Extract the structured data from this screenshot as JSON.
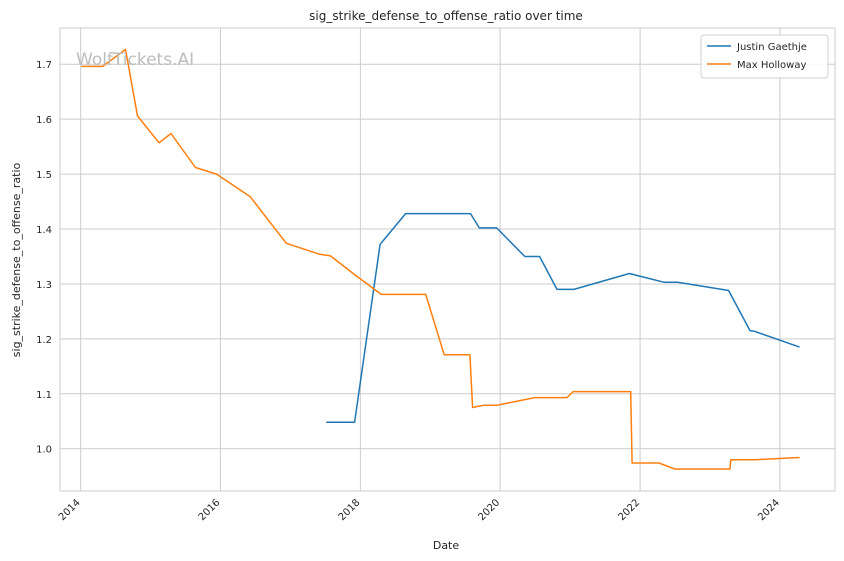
{
  "chart_data": {
    "type": "line",
    "title": "sig_strike_defense_to_offense_ratio over time",
    "xlabel": "Date",
    "ylabel": "sig_strike_defense_to_offense_ratio",
    "watermark": "WolfTickets.AI",
    "xlim": [
      "2013-09-15",
      "2024-10-15"
    ],
    "ylim": [
      0.923,
      1.766
    ],
    "x_ticks": [
      "2014",
      "2016",
      "2018",
      "2020",
      "2022",
      "2024"
    ],
    "y_ticks": [
      "1.0",
      "1.1",
      "1.2",
      "1.3",
      "1.4",
      "1.5",
      "1.6",
      "1.7"
    ],
    "grid": true,
    "legend_position": "top-right",
    "series": [
      {
        "name": "Justin Gaethje",
        "color": "#1f77b4",
        "points": [
          [
            "2017-07-07",
            1.048
          ],
          [
            "2017-12-02",
            1.048
          ],
          [
            "2018-04-14",
            1.372
          ],
          [
            "2018-08-25",
            1.428
          ],
          [
            "2019-03-30",
            1.428
          ],
          [
            "2019-07-30",
            1.428
          ],
          [
            "2019-09-14",
            1.402
          ],
          [
            "2019-12-14",
            1.402
          ],
          [
            "2020-05-09",
            1.35
          ],
          [
            "2020-07-25",
            1.35
          ],
          [
            "2020-10-24",
            1.29
          ],
          [
            "2021-01-20",
            1.29
          ],
          [
            "2021-11-06",
            1.319
          ],
          [
            "2022-05-07",
            1.303
          ],
          [
            "2022-07-16",
            1.303
          ],
          [
            "2023-03-04",
            1.29
          ],
          [
            "2023-04-08",
            1.288
          ],
          [
            "2023-07-29",
            1.215
          ],
          [
            "2023-08-20",
            1.214
          ],
          [
            "2024-04-13",
            1.185
          ]
        ]
      },
      {
        "name": "Max Holloway",
        "color": "#ff7f0e",
        "points": [
          [
            "2014-01-04",
            1.696
          ],
          [
            "2014-04-26",
            1.696
          ],
          [
            "2014-08-23",
            1.727
          ],
          [
            "2014-10-25",
            1.606
          ],
          [
            "2015-02-14",
            1.557
          ],
          [
            "2015-04-18",
            1.574
          ],
          [
            "2015-08-23",
            1.512
          ],
          [
            "2015-12-12",
            1.5
          ],
          [
            "2016-06-04",
            1.459
          ],
          [
            "2016-12-10",
            1.374
          ],
          [
            "2017-06-03",
            1.354
          ],
          [
            "2017-07-29",
            1.351
          ],
          [
            "2017-12-02",
            1.317
          ],
          [
            "2018-04-20",
            1.281
          ],
          [
            "2018-07-07",
            1.281
          ],
          [
            "2018-12-08",
            1.281
          ],
          [
            "2019-03-15",
            1.171
          ],
          [
            "2019-07-27",
            1.171
          ],
          [
            "2019-08-10",
            1.075
          ],
          [
            "2019-10-05",
            1.079
          ],
          [
            "2019-12-14",
            1.079
          ],
          [
            "2020-06-30",
            1.093
          ],
          [
            "2020-07-12",
            1.093
          ],
          [
            "2020-08-20",
            1.093
          ],
          [
            "2020-12-15",
            1.093
          ],
          [
            "2021-01-16",
            1.104
          ],
          [
            "2021-11-13",
            1.104
          ],
          [
            "2021-11-20",
            0.974
          ],
          [
            "2022-04-09",
            0.974
          ],
          [
            "2022-07-02",
            0.963
          ],
          [
            "2022-10-01",
            0.963
          ],
          [
            "2023-04-15",
            0.963
          ],
          [
            "2023-04-20",
            0.98
          ],
          [
            "2023-08-26",
            0.98
          ],
          [
            "2023-12-16",
            0.982
          ],
          [
            "2024-04-13",
            0.984
          ]
        ]
      }
    ]
  }
}
